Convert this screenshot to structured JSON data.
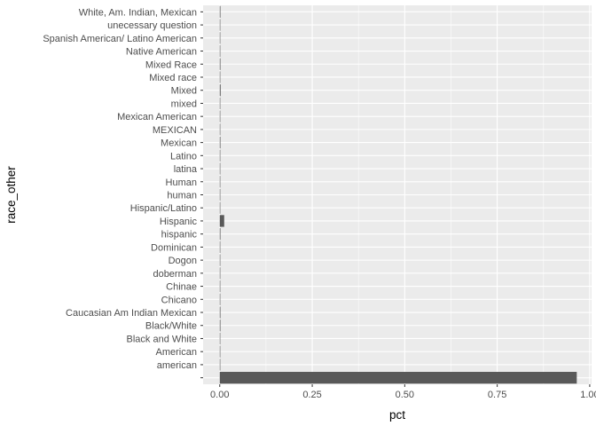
{
  "chart_data": {
    "type": "bar",
    "orientation": "horizontal",
    "xlabel": "pct",
    "ylabel": "race_other",
    "xlim": [
      -0.045,
      1.005
    ],
    "xticks": [
      0.0,
      0.25,
      0.5,
      0.75,
      1.0
    ],
    "xtick_labels": [
      "0.00",
      "0.25",
      "0.50",
      "0.75",
      "1.00"
    ],
    "grid": true,
    "categories": [
      "",
      "american",
      "American",
      "Black and White",
      "Black/White",
      "Caucasian Am Indian Mexican",
      "Chicano",
      "Chinae",
      "doberman",
      "Dogon",
      "Dominican",
      "hispanic",
      "Hispanic",
      "Hispanic/Latino",
      "human",
      "Human",
      "latina",
      "Latino",
      "Mexican",
      "MEXICAN",
      "Mexican American",
      "mixed",
      "Mixed",
      "Mixed race",
      "Mixed Race",
      "Native American",
      "Spanish American/ Latino American",
      "unecessary question",
      "White, Am. Indian, Mexican"
    ],
    "values": [
      0.965,
      0.0006,
      0.0006,
      0.0006,
      0.0018,
      0.0018,
      0.0006,
      0.0006,
      0.0006,
      0.0006,
      0.0006,
      0.0018,
      0.012,
      0.0006,
      0.0006,
      0.0006,
      0.0006,
      0.0006,
      0.0018,
      0.0006,
      0.0006,
      0.0006,
      0.0024,
      0.0006,
      0.0018,
      0.0006,
      0.0006,
      0.0006,
      0.0018
    ],
    "bar_color": "#595959",
    "panel_background": "#ebebeb",
    "grid_color": "#ffffff"
  }
}
